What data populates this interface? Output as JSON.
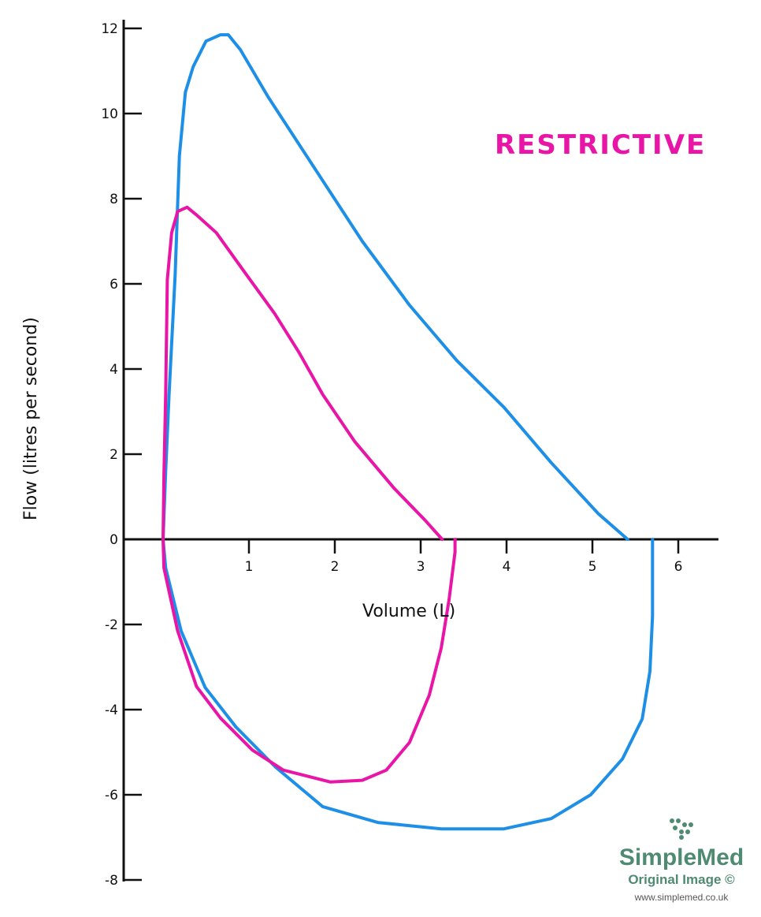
{
  "chart_data": {
    "type": "line",
    "title": "RESTRICTIVE",
    "xlabel": "Volume (L)",
    "ylabel": "Flow (litres per second)",
    "xlim": [
      0,
      6.5
    ],
    "ylim": [
      -8,
      12
    ],
    "x_ticks": [
      "1",
      "2",
      "3",
      "4",
      "5",
      "6"
    ],
    "y_ticks": [
      "12",
      "10",
      "8",
      "6",
      "4",
      "2",
      "0",
      "-2",
      "-4",
      "-6",
      "-8"
    ],
    "grid": false,
    "series": [
      {
        "color": "#1e8fe6",
        "points": [
          [
            0,
            0
          ],
          [
            0.03,
            1.6
          ],
          [
            0.07,
            3.4
          ],
          [
            0.14,
            6.2
          ],
          [
            0.19,
            9.0
          ],
          [
            0.26,
            10.5
          ],
          [
            0.35,
            11.1
          ],
          [
            0.5,
            11.7
          ],
          [
            0.67,
            11.85
          ],
          [
            0.76,
            11.85
          ],
          [
            0.9,
            11.5
          ],
          [
            1.22,
            10.4
          ],
          [
            1.77,
            8.7
          ],
          [
            2.32,
            7.0
          ],
          [
            2.87,
            5.5
          ],
          [
            3.42,
            4.2
          ],
          [
            3.97,
            3.1
          ],
          [
            4.52,
            1.8
          ],
          [
            5.07,
            0.6
          ],
          [
            5.41,
            0
          ]
        ],
        "points_lower": [
          [
            0,
            0
          ],
          [
            0.03,
            -0.67
          ],
          [
            0.21,
            -2.15
          ],
          [
            0.49,
            -3.48
          ],
          [
            0.85,
            -4.41
          ],
          [
            1.31,
            -5.35
          ],
          [
            1.86,
            -6.28
          ],
          [
            2.5,
            -6.65
          ],
          [
            3.24,
            -6.8
          ],
          [
            3.97,
            -6.8
          ],
          [
            4.52,
            -6.56
          ],
          [
            4.98,
            -6.0
          ],
          [
            5.35,
            -5.16
          ],
          [
            5.58,
            -4.22
          ],
          [
            5.67,
            -3.1
          ],
          [
            5.7,
            -1.8
          ],
          [
            5.7,
            0
          ]
        ]
      },
      {
        "color": "#e815a6",
        "points": [
          [
            0,
            0
          ],
          [
            0.01,
            1.5
          ],
          [
            0.03,
            3.4
          ],
          [
            0.05,
            6.1
          ],
          [
            0.1,
            7.2
          ],
          [
            0.17,
            7.7
          ],
          [
            0.28,
            7.8
          ],
          [
            0.4,
            7.6
          ],
          [
            0.62,
            7.2
          ],
          [
            0.94,
            6.3
          ],
          [
            1.3,
            5.3
          ],
          [
            1.58,
            4.4
          ],
          [
            1.86,
            3.4
          ],
          [
            2.23,
            2.3
          ],
          [
            2.69,
            1.2
          ],
          [
            3.05,
            0.45
          ],
          [
            3.25,
            0
          ]
        ],
        "points_lower": [
          [
            0,
            0
          ],
          [
            0.01,
            -0.67
          ],
          [
            0.17,
            -2.15
          ],
          [
            0.39,
            -3.46
          ],
          [
            0.67,
            -4.2
          ],
          [
            1.04,
            -4.95
          ],
          [
            1.4,
            -5.42
          ],
          [
            1.95,
            -5.7
          ],
          [
            2.32,
            -5.66
          ],
          [
            2.6,
            -5.42
          ],
          [
            2.87,
            -4.77
          ],
          [
            3.1,
            -3.66
          ],
          [
            3.24,
            -2.54
          ],
          [
            3.33,
            -1.42
          ],
          [
            3.4,
            -0.3
          ],
          [
            3.4,
            0
          ]
        ]
      }
    ]
  },
  "logo": {
    "name": "SimpleMed",
    "subtitle": "Original Image ©",
    "url": "www.simplemed.co.uk",
    "color": "#4f8a72"
  }
}
